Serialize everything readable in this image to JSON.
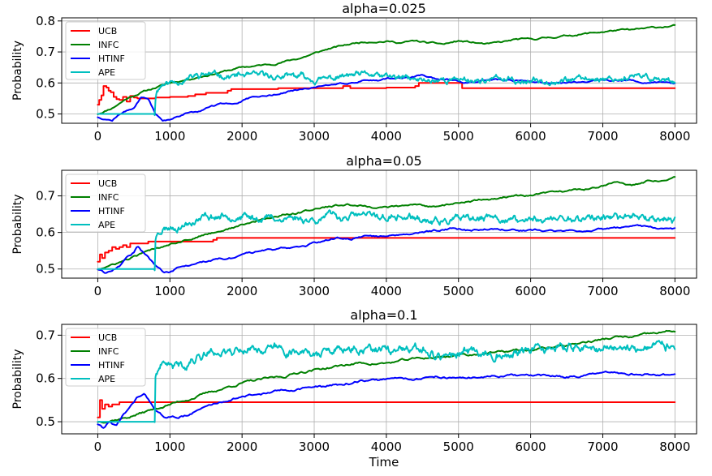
{
  "chart_data": [
    {
      "type": "line",
      "title": "alpha=0.025",
      "xlabel": "",
      "ylabel": "Probability",
      "xlim": [
        -500,
        8300
      ],
      "ylim": [
        0.47,
        0.81
      ],
      "xticks": [
        0,
        1000,
        2000,
        3000,
        4000,
        5000,
        6000,
        7000,
        8000
      ],
      "yticks": [
        0.5,
        0.6,
        0.7,
        0.8
      ],
      "ytick_labels": [
        "0.5",
        "0.6",
        "0.7",
        "0.8"
      ],
      "grid": true,
      "legend": "top-left",
      "series": [
        {
          "name": "UCB",
          "color": "#ff0000",
          "step": true,
          "x": [
            0,
            20,
            50,
            80,
            120,
            150,
            180,
            220,
            260,
            300,
            350,
            400,
            450,
            500,
            550,
            600,
            650,
            700,
            800,
            1000,
            1100,
            1250,
            1350,
            1500,
            1800,
            1850,
            2000,
            2400,
            2500,
            3000,
            3400,
            3500,
            4000,
            4400,
            4450,
            5000,
            5050,
            6000,
            7000,
            8000
          ],
          "y": [
            0.53,
            0.545,
            0.56,
            0.59,
            0.585,
            0.575,
            0.57,
            0.555,
            0.548,
            0.545,
            0.555,
            0.54,
            0.558,
            0.553,
            0.55,
            0.55,
            0.55,
            0.55,
            0.553,
            0.555,
            0.555,
            0.558,
            0.563,
            0.568,
            0.575,
            0.58,
            0.58,
            0.58,
            0.583,
            0.583,
            0.59,
            0.583,
            0.585,
            0.59,
            0.6,
            0.6,
            0.583,
            0.583,
            0.583,
            0.583
          ]
        },
        {
          "name": "INFC",
          "color": "#008000",
          "x": [
            0,
            200,
            400,
            600,
            800,
            1000,
            1200,
            1400,
            1600,
            1800,
            2000,
            2200,
            2400,
            2600,
            2800,
            3000,
            3200,
            3400,
            3600,
            3800,
            4000,
            4200,
            4400,
            4600,
            4800,
            5000,
            5200,
            5400,
            5600,
            5800,
            6000,
            6200,
            6400,
            6600,
            6800,
            7000,
            7200,
            7400,
            7600,
            7800,
            8000
          ],
          "y": [
            0.5,
            0.52,
            0.55,
            0.57,
            0.585,
            0.6,
            0.61,
            0.62,
            0.63,
            0.64,
            0.65,
            0.655,
            0.66,
            0.67,
            0.68,
            0.695,
            0.71,
            0.72,
            0.73,
            0.735,
            0.735,
            0.73,
            0.735,
            0.728,
            0.725,
            0.735,
            0.73,
            0.725,
            0.73,
            0.74,
            0.74,
            0.745,
            0.75,
            0.755,
            0.76,
            0.765,
            0.77,
            0.77,
            0.775,
            0.78,
            0.785
          ]
        },
        {
          "name": "HTINF",
          "color": "#0000ff",
          "x": [
            0,
            100,
            200,
            300,
            400,
            500,
            600,
            700,
            800,
            900,
            1000,
            1100,
            1200,
            1300,
            1400,
            1500,
            1700,
            1900,
            2100,
            2300,
            2500,
            2700,
            2900,
            3100,
            3300,
            3500,
            3700,
            3900,
            4100,
            4300,
            4500,
            4700,
            4900,
            5100,
            5500,
            6000,
            6500,
            7000,
            7500,
            8000
          ],
          "y": [
            0.49,
            0.485,
            0.48,
            0.5,
            0.51,
            0.52,
            0.555,
            0.545,
            0.5,
            0.48,
            0.48,
            0.49,
            0.5,
            0.51,
            0.51,
            0.52,
            0.53,
            0.535,
            0.55,
            0.555,
            0.565,
            0.575,
            0.58,
            0.59,
            0.6,
            0.6,
            0.61,
            0.61,
            0.615,
            0.62,
            0.625,
            0.61,
            0.61,
            0.6,
            0.61,
            0.605,
            0.6,
            0.61,
            0.605,
            0.6
          ]
        },
        {
          "name": "APE",
          "color": "#00bfbf",
          "noisy": true,
          "seed": 11,
          "x": [
            0,
            790,
            800,
            820,
            900,
            1200,
            1500,
            1700,
            2000,
            2500,
            3000,
            3500,
            4000,
            4500,
            5000,
            5500,
            6000,
            6500,
            7000,
            7500,
            8000
          ],
          "y": [
            0.5,
            0.5,
            0.55,
            0.58,
            0.6,
            0.615,
            0.635,
            0.63,
            0.625,
            0.62,
            0.615,
            0.62,
            0.615,
            0.605,
            0.61,
            0.61,
            0.61,
            0.61,
            0.615,
            0.615,
            0.61
          ]
        }
      ]
    },
    {
      "type": "line",
      "title": "alpha=0.05",
      "xlabel": "",
      "ylabel": "Probability",
      "xlim": [
        -500,
        8300
      ],
      "ylim": [
        0.475,
        0.77
      ],
      "xticks": [
        0,
        1000,
        2000,
        3000,
        4000,
        5000,
        6000,
        7000,
        8000
      ],
      "yticks": [
        0.5,
        0.6,
        0.7
      ],
      "ytick_labels": [
        "0.5",
        "0.6",
        "0.7"
      ],
      "grid": true,
      "legend": "top-left",
      "series": [
        {
          "name": "UCB",
          "color": "#ff0000",
          "step": true,
          "x": [
            0,
            30,
            60,
            100,
            150,
            200,
            250,
            300,
            350,
            400,
            450,
            500,
            600,
            700,
            800,
            1000,
            1200,
            1400,
            1600,
            1650,
            2000,
            3000,
            4000,
            5000,
            6000,
            7000,
            8000
          ],
          "y": [
            0.52,
            0.54,
            0.53,
            0.545,
            0.55,
            0.56,
            0.555,
            0.56,
            0.565,
            0.56,
            0.57,
            0.57,
            0.57,
            0.575,
            0.575,
            0.575,
            0.575,
            0.575,
            0.58,
            0.585,
            0.585,
            0.585,
            0.585,
            0.585,
            0.585,
            0.585,
            0.585
          ]
        },
        {
          "name": "INFC",
          "color": "#008000",
          "x": [
            0,
            200,
            400,
            600,
            800,
            1000,
            1200,
            1400,
            1600,
            1800,
            2000,
            2200,
            2400,
            2600,
            2800,
            3000,
            3200,
            3400,
            3600,
            3800,
            4000,
            4200,
            4400,
            4600,
            4800,
            5000,
            5200,
            5400,
            5600,
            5800,
            6000,
            6200,
            6400,
            6600,
            6800,
            7000,
            7200,
            7400,
            7600,
            7800,
            8000
          ],
          "y": [
            0.5,
            0.51,
            0.525,
            0.54,
            0.555,
            0.57,
            0.58,
            0.59,
            0.6,
            0.61,
            0.62,
            0.63,
            0.64,
            0.65,
            0.655,
            0.665,
            0.67,
            0.675,
            0.675,
            0.67,
            0.67,
            0.67,
            0.675,
            0.672,
            0.675,
            0.68,
            0.685,
            0.69,
            0.695,
            0.7,
            0.7,
            0.705,
            0.71,
            0.715,
            0.72,
            0.73,
            0.735,
            0.73,
            0.74,
            0.745,
            0.755
          ]
        },
        {
          "name": "HTINF",
          "color": "#0000ff",
          "x": [
            0,
            100,
            200,
            300,
            400,
            500,
            550,
            600,
            700,
            800,
            900,
            1000,
            1100,
            1300,
            1500,
            1700,
            1900,
            2100,
            2300,
            2500,
            2700,
            2900,
            3100,
            3300,
            3500,
            3700,
            3900,
            4100,
            4300,
            4500,
            4700,
            4900,
            5100,
            5500,
            6000,
            6500,
            7000,
            7500,
            8000
          ],
          "y": [
            0.5,
            0.49,
            0.5,
            0.51,
            0.53,
            0.545,
            0.56,
            0.55,
            0.53,
            0.51,
            0.495,
            0.49,
            0.5,
            0.51,
            0.52,
            0.53,
            0.53,
            0.54,
            0.55,
            0.555,
            0.56,
            0.565,
            0.575,
            0.585,
            0.585,
            0.59,
            0.59,
            0.595,
            0.6,
            0.6,
            0.605,
            0.61,
            0.605,
            0.61,
            0.605,
            0.605,
            0.61,
            0.615,
            0.61
          ]
        },
        {
          "name": "APE",
          "color": "#00bfbf",
          "noisy": true,
          "seed": 23,
          "x": [
            0,
            790,
            800,
            830,
            900,
            1200,
            1500,
            1800,
            2000,
            2500,
            3000,
            3500,
            4000,
            4500,
            5000,
            5500,
            6000,
            6500,
            7000,
            7500,
            8000
          ],
          "y": [
            0.5,
            0.5,
            0.58,
            0.6,
            0.61,
            0.62,
            0.635,
            0.64,
            0.645,
            0.64,
            0.64,
            0.65,
            0.64,
            0.635,
            0.635,
            0.635,
            0.635,
            0.635,
            0.64,
            0.645,
            0.64
          ]
        }
      ]
    },
    {
      "type": "line",
      "title": "alpha=0.1",
      "xlabel": "Time",
      "ylabel": "Probability",
      "xlim": [
        -500,
        8300
      ],
      "ylim": [
        0.472,
        0.725
      ],
      "xticks": [
        0,
        1000,
        2000,
        3000,
        4000,
        5000,
        6000,
        7000,
        8000
      ],
      "yticks": [
        0.5,
        0.6,
        0.7
      ],
      "ytick_labels": [
        "0.5",
        "0.6",
        "0.7"
      ],
      "grid": true,
      "legend": "top-left",
      "series": [
        {
          "name": "UCB",
          "color": "#ff0000",
          "step": true,
          "x": [
            0,
            30,
            60,
            100,
            150,
            200,
            300,
            400,
            500,
            600,
            1000,
            2000,
            3000,
            4000,
            5000,
            6000,
            7000,
            8000
          ],
          "y": [
            0.51,
            0.55,
            0.53,
            0.54,
            0.535,
            0.54,
            0.545,
            0.545,
            0.545,
            0.545,
            0.545,
            0.545,
            0.545,
            0.545,
            0.545,
            0.545,
            0.545,
            0.545
          ]
        },
        {
          "name": "INFC",
          "color": "#008000",
          "x": [
            0,
            200,
            400,
            600,
            800,
            1000,
            1200,
            1400,
            1600,
            1800,
            2000,
            2200,
            2400,
            2600,
            2800,
            3000,
            3200,
            3400,
            3600,
            3800,
            4000,
            4200,
            4400,
            4600,
            4800,
            5000,
            5200,
            5400,
            5600,
            5800,
            6000,
            6200,
            6400,
            6600,
            6800,
            7000,
            7200,
            7400,
            7600,
            7800,
            8000
          ],
          "y": [
            0.5,
            0.505,
            0.51,
            0.52,
            0.53,
            0.54,
            0.55,
            0.56,
            0.57,
            0.58,
            0.59,
            0.595,
            0.6,
            0.605,
            0.615,
            0.62,
            0.625,
            0.63,
            0.635,
            0.635,
            0.635,
            0.64,
            0.645,
            0.648,
            0.65,
            0.655,
            0.655,
            0.66,
            0.66,
            0.665,
            0.665,
            0.67,
            0.675,
            0.68,
            0.685,
            0.69,
            0.695,
            0.695,
            0.7,
            0.705,
            0.71
          ]
        },
        {
          "name": "HTINF",
          "color": "#0000ff",
          "x": [
            0,
            80,
            150,
            250,
            350,
            450,
            550,
            650,
            750,
            850,
            950,
            1100,
            1300,
            1500,
            1700,
            1900,
            2100,
            2300,
            2500,
            2700,
            2900,
            3100,
            3300,
            3500,
            3700,
            3900,
            4100,
            4300,
            4500,
            4700,
            5000,
            5500,
            6000,
            6500,
            7000,
            7500,
            8000
          ],
          "y": [
            0.495,
            0.485,
            0.5,
            0.49,
            0.515,
            0.53,
            0.555,
            0.56,
            0.54,
            0.52,
            0.51,
            0.51,
            0.52,
            0.535,
            0.545,
            0.555,
            0.56,
            0.565,
            0.57,
            0.575,
            0.58,
            0.58,
            0.585,
            0.59,
            0.595,
            0.595,
            0.6,
            0.6,
            0.6,
            0.605,
            0.6,
            0.605,
            0.605,
            0.605,
            0.61,
            0.61,
            0.608
          ]
        },
        {
          "name": "APE",
          "color": "#00bfbf",
          "noisy": true,
          "seed": 41,
          "x": [
            0,
            790,
            800,
            830,
            900,
            1200,
            1500,
            1800,
            2000,
            2500,
            3000,
            3500,
            4000,
            4500,
            5000,
            5500,
            6000,
            6500,
            7000,
            7500,
            8000
          ],
          "y": [
            0.5,
            0.5,
            0.6,
            0.62,
            0.625,
            0.63,
            0.66,
            0.665,
            0.67,
            0.665,
            0.66,
            0.665,
            0.665,
            0.66,
            0.655,
            0.66,
            0.665,
            0.668,
            0.67,
            0.675,
            0.67
          ]
        }
      ]
    }
  ]
}
